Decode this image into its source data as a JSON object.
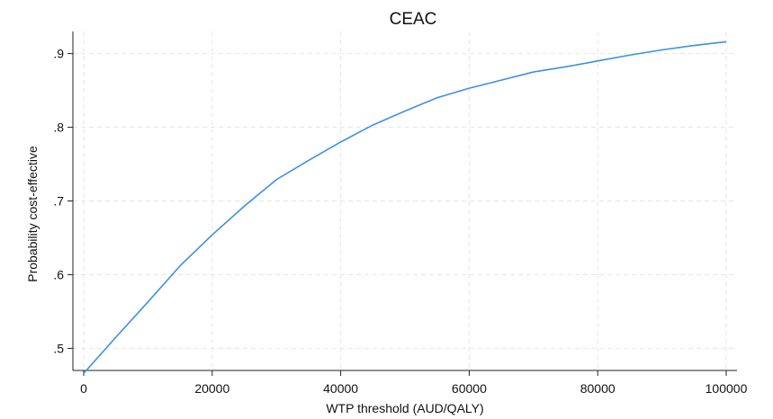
{
  "chart_data": {
    "type": "line",
    "title": "CEAC",
    "xlabel": "WTP threshold (AUD/QALY)",
    "ylabel": "Probability cost-effective",
    "xlim": [
      0,
      100000
    ],
    "ylim": [
      0.47,
      0.93
    ],
    "xticks": [
      {
        "value": 0,
        "label": "0"
      },
      {
        "value": 20000,
        "label": "20000"
      },
      {
        "value": 40000,
        "label": "40000"
      },
      {
        "value": 60000,
        "label": "60000"
      },
      {
        "value": 80000,
        "label": "80000"
      },
      {
        "value": 100000,
        "label": "100000"
      }
    ],
    "yticks": [
      {
        "value": 0.5,
        "label": ".5"
      },
      {
        "value": 0.6,
        "label": ".6"
      },
      {
        "value": 0.7,
        "label": ".7"
      },
      {
        "value": 0.8,
        "label": ".8"
      },
      {
        "value": 0.9,
        "label": ".9"
      }
    ],
    "grid": true,
    "series": [
      {
        "color": "#3d8fe8",
        "x": [
          0,
          5000,
          10000,
          15000,
          20000,
          25000,
          30000,
          35000,
          40000,
          45000,
          50000,
          55000,
          60000,
          65000,
          70000,
          75000,
          80000,
          85000,
          90000,
          95000,
          100000
        ],
        "y": [
          0.466,
          0.515,
          0.563,
          0.612,
          0.654,
          0.693,
          0.729,
          0.755,
          0.78,
          0.803,
          0.822,
          0.84,
          0.853,
          0.864,
          0.875,
          0.882,
          0.89,
          0.898,
          0.905,
          0.911,
          0.916
        ]
      }
    ]
  }
}
